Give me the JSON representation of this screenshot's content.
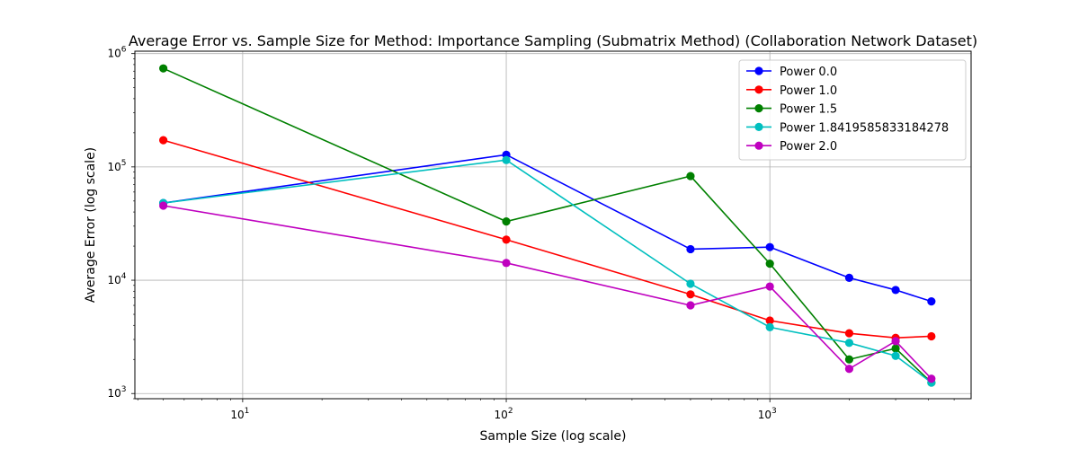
{
  "chart_data": {
    "type": "line",
    "title": "Average Error vs. Sample Size for Method: Importance Sampling (Submatrix Method) (Collaboration Network Dataset)",
    "xlabel": "Sample Size (log scale)",
    "ylabel": "Average Error (log scale)",
    "xscale": "log",
    "yscale": "log",
    "xlim": [
      3.9,
      5800
    ],
    "ylim": [
      900,
      1050000
    ],
    "grid": true,
    "legend_position": "top-right",
    "x_ticks": [
      {
        "value": 10,
        "base": "10",
        "exp": "1"
      },
      {
        "value": 100,
        "base": "10",
        "exp": "2"
      },
      {
        "value": 1000,
        "base": "10",
        "exp": "3"
      }
    ],
    "y_ticks": [
      {
        "value": 1000,
        "base": "10",
        "exp": "3"
      },
      {
        "value": 10000,
        "base": "10",
        "exp": "4"
      },
      {
        "value": 100000,
        "base": "10",
        "exp": "5"
      },
      {
        "value": 1000000,
        "base": "10",
        "exp": "6"
      }
    ],
    "x": [
      5,
      100,
      500,
      1000,
      2000,
      3000,
      4100
    ],
    "series": [
      {
        "name": "Power 0.0",
        "color": "#0000ff",
        "values": [
          48000,
          128000,
          18800,
          19600,
          10500,
          8200,
          6500
        ]
      },
      {
        "name": "Power 1.0",
        "color": "#ff0000",
        "values": [
          172000,
          22800,
          7500,
          4400,
          3400,
          3100,
          3200
        ]
      },
      {
        "name": "Power 1.5",
        "color": "#008000",
        "values": [
          740000,
          33000,
          83000,
          14000,
          2000,
          2500,
          1250
        ]
      },
      {
        "name": "Power 1.8419585833184278",
        "color": "#00bfbf",
        "values": [
          48000,
          115000,
          9300,
          3850,
          2800,
          2150,
          1250
        ]
      },
      {
        "name": "Power 2.0",
        "color": "#bf00bf",
        "values": [
          45500,
          14200,
          6000,
          8800,
          1650,
          2900,
          1350
        ]
      }
    ]
  }
}
